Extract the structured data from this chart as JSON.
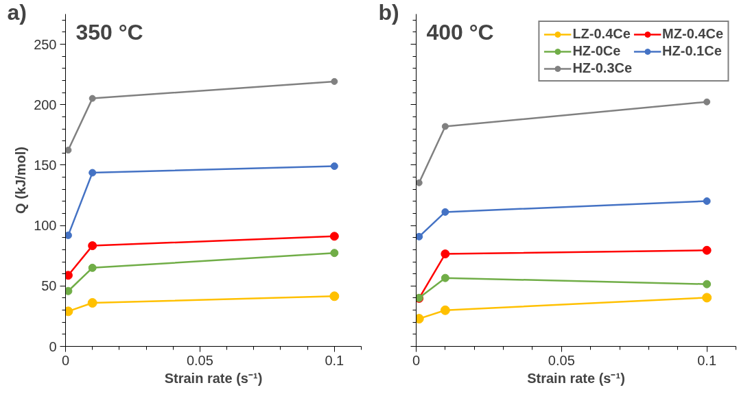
{
  "chart_data": [
    {
      "type": "line",
      "title": "350 °C",
      "annotations": [
        "a)"
      ],
      "xlabel": "Strain rate (s⁻¹)",
      "ylabel": "Q (kJ/mol)",
      "x": [
        0.001,
        0.01,
        0.1
      ],
      "xlim": [
        0,
        0.11
      ],
      "xticks": [
        0,
        0.05,
        0.1
      ],
      "ylim": [
        0,
        275
      ],
      "yticks": [
        0,
        50,
        100,
        150,
        200,
        250
      ],
      "grid": false,
      "legend": false,
      "marker": "circle",
      "line_style": "solid",
      "series": [
        {
          "color": "#ffc000",
          "values": [
            29,
            36,
            41.5
          ]
        },
        {
          "color": "#ff0000",
          "values": [
            58.8,
            83.3,
            91.1
          ]
        },
        {
          "color": "#70ad47",
          "values": [
            45.8,
            65,
            77.3
          ]
        },
        {
          "color": "#4472c4",
          "values": [
            91.9,
            143.7,
            149.1
          ]
        },
        {
          "color": "#808080",
          "values": [
            162.4,
            205.2,
            219.2
          ]
        }
      ]
    },
    {
      "type": "line",
      "title": "400 °C",
      "annotations": [
        "b)"
      ],
      "xlabel": "Strain rate (s⁻¹)",
      "x": [
        0.001,
        0.01,
        0.1
      ],
      "xlim": [
        0,
        0.11
      ],
      "xticks": [
        0,
        0.05,
        0.1
      ],
      "ylim": [
        0,
        275
      ],
      "yticks": [
        {
          "value": 0,
          "label": null
        },
        {
          "value": 50,
          "label": null
        },
        {
          "value": 100,
          "label": null
        },
        {
          "value": 150,
          "label": null
        },
        {
          "value": 200,
          "label": null
        },
        {
          "value": 250,
          "label": null
        }
      ],
      "tick_labels": "x",
      "grid": false,
      "legend": "top right",
      "marker": "circle",
      "line_style": "solid",
      "series": [
        {
          "name": "LZ-0.4Ce",
          "color": "#ffc000",
          "values": [
            22.9,
            29.9,
            40.3
          ]
        },
        {
          "name": "MZ-0.4Ce",
          "color": "#ff0000",
          "values": [
            39.7,
            76.5,
            79.5
          ]
        },
        {
          "name": "HZ-0Ce",
          "color": "#70ad47",
          "values": [
            40.1,
            56.6,
            51.5
          ]
        },
        {
          "name": "HZ-0.1Ce",
          "color": "#4472c4",
          "values": [
            90.8,
            111.2,
            120.2
          ]
        },
        {
          "name": "HZ-0.3Ce",
          "color": "#808080",
          "values": [
            135.4,
            182,
            202.3
          ]
        }
      ]
    }
  ]
}
